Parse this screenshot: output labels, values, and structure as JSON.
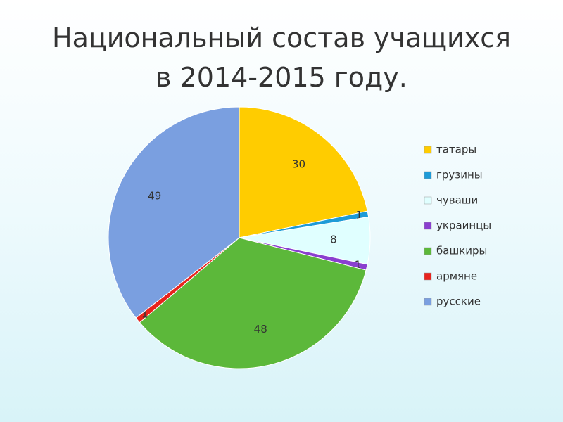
{
  "chart_data": {
    "type": "pie",
    "title": "Национальный состав учащихся в 2014-2015 году.",
    "categories": [
      "татары",
      "грузины",
      "чуваши",
      "украинцы",
      "башкиры",
      "армяне",
      "русские"
    ],
    "values": [
      30,
      1,
      8,
      1,
      48,
      1,
      49
    ],
    "colors": [
      "#ffcc00",
      "#1e9bd7",
      "#e0ffff",
      "#8a3fcf",
      "#5cb83a",
      "#e8231d",
      "#7a9fe0"
    ],
    "legend": "right"
  }
}
